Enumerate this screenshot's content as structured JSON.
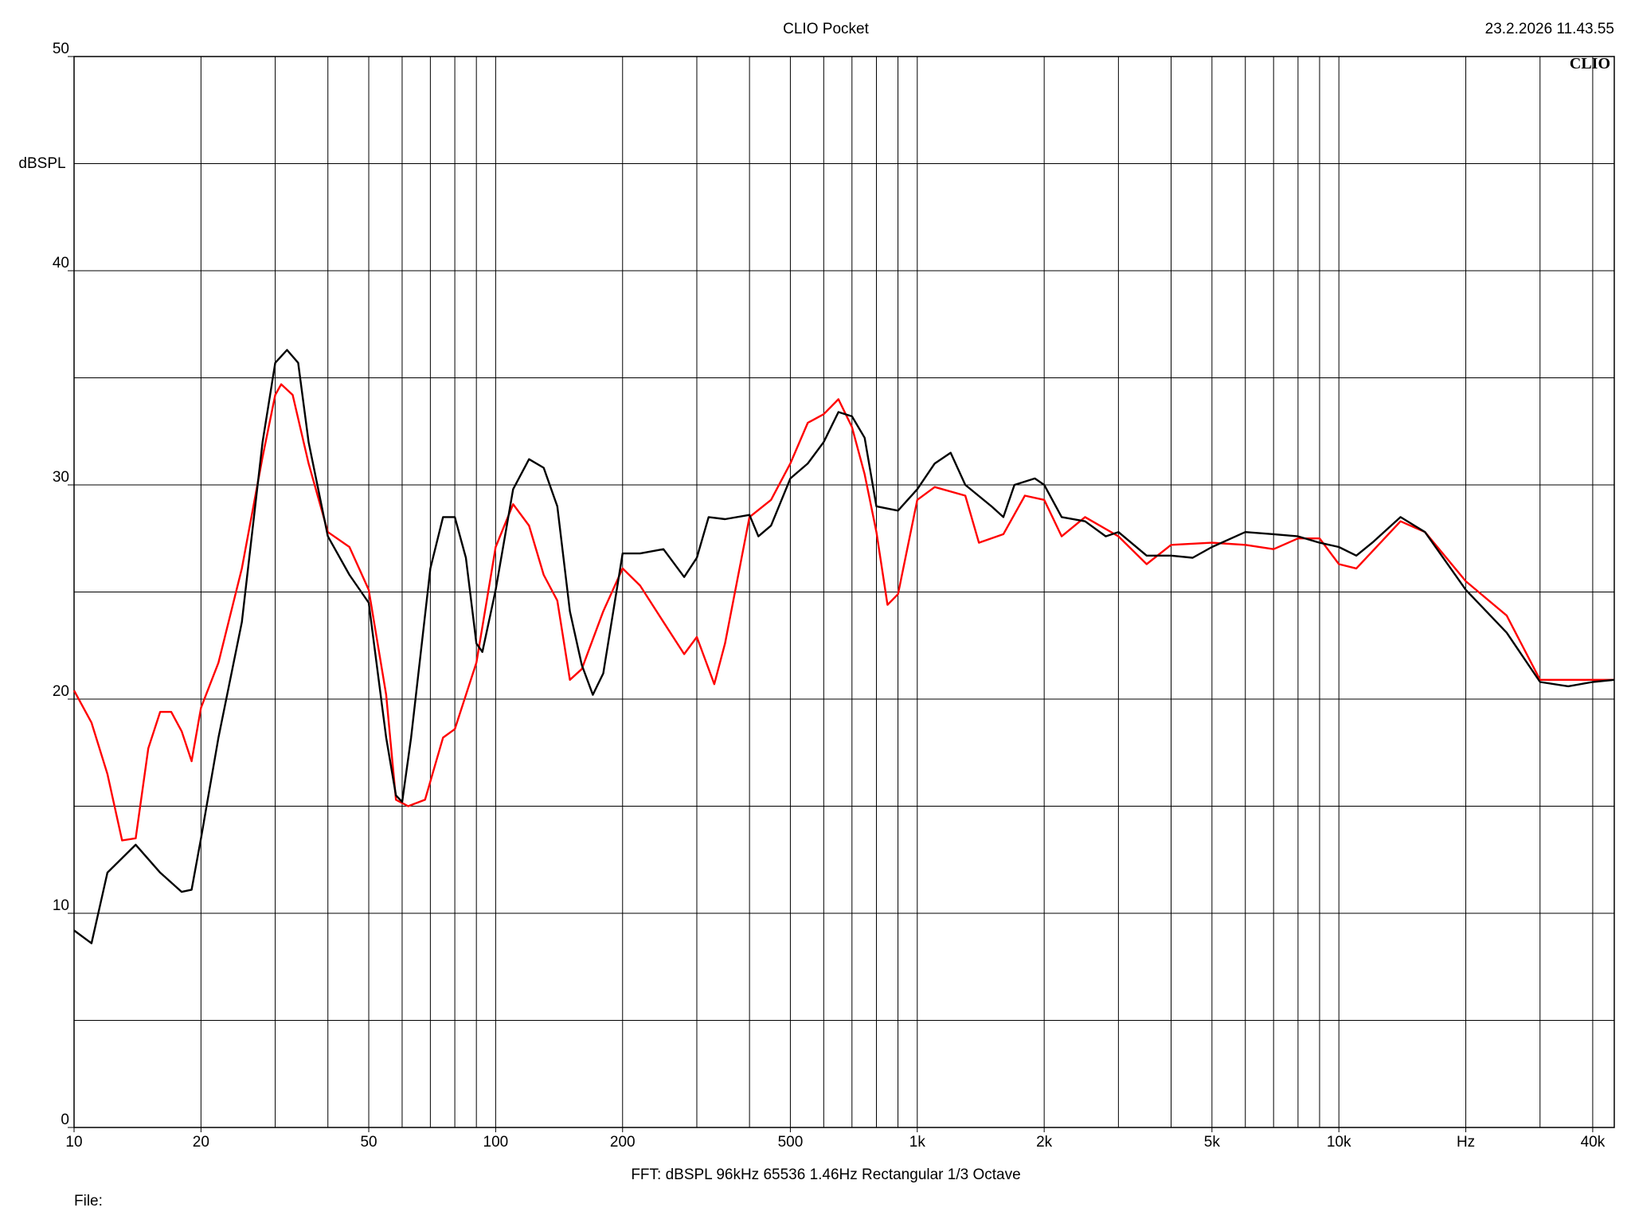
{
  "chart_data": {
    "type": "line",
    "title": "CLIO Pocket",
    "timestamp": "23.2.2026 11.43.55",
    "logo": "CLIO",
    "y_label": "dBSPL",
    "footer": "FFT:  dBSPL  96kHz  65536  1.46Hz  Rectangular  1/3 Octave",
    "file_label": "File:",
    "x_scale": "log",
    "xlim": [
      10,
      45000
    ],
    "ylim": [
      0,
      50
    ],
    "xticks": [
      10,
      20,
      50,
      100,
      200,
      500,
      {
        "value": 1000,
        "label": "1k"
      },
      {
        "value": 2000,
        "label": "2k"
      },
      {
        "value": 5000,
        "label": "5k"
      },
      {
        "value": 10000,
        "label": "10k"
      },
      {
        "value": 20000,
        "label": "Hz"
      },
      {
        "value": 40000,
        "label": "40k"
      }
    ],
    "yticks": [
      0,
      10,
      20,
      30,
      40,
      50
    ],
    "xgrid": [
      20,
      30,
      40,
      50,
      60,
      70,
      80,
      90,
      100,
      200,
      300,
      400,
      500,
      600,
      700,
      800,
      900,
      1000,
      2000,
      3000,
      4000,
      5000,
      6000,
      7000,
      8000,
      9000,
      10000,
      20000,
      30000,
      40000
    ],
    "ygrid": [
      5,
      10,
      15,
      20,
      25,
      30,
      35,
      40,
      45
    ],
    "grid": true,
    "series": [
      {
        "color": "#000000",
        "x": [
          10,
          11,
          12,
          14,
          16,
          18,
          19,
          20,
          22,
          25,
          28,
          30,
          32,
          34,
          36,
          40,
          45,
          50,
          55,
          58,
          60,
          63,
          70,
          75,
          80,
          85,
          90,
          93,
          100,
          110,
          120,
          130,
          140,
          150,
          160,
          170,
          180,
          200,
          220,
          250,
          280,
          300,
          320,
          350,
          400,
          420,
          450,
          500,
          550,
          600,
          650,
          700,
          750,
          800,
          900,
          1000,
          1100,
          1200,
          1300,
          1500,
          1600,
          1700,
          1900,
          2000,
          2200,
          2500,
          2800,
          3000,
          3500,
          4000,
          4500,
          5000,
          6000,
          7000,
          8000,
          9000,
          10000,
          11000,
          12000,
          14000,
          16000,
          20000,
          25000,
          30000,
          35000,
          40000,
          45000
        ],
        "values": [
          9.2,
          8.6,
          11.9,
          13.2,
          11.9,
          11.0,
          11.1,
          13.5,
          18.2,
          23.6,
          32,
          35.7,
          36.3,
          35.7,
          32,
          27.6,
          25.8,
          24.5,
          18.2,
          15.5,
          15.2,
          18.2,
          26.1,
          28.5,
          28.5,
          26.6,
          22.6,
          22.2,
          25.1,
          29.8,
          31.2,
          30.8,
          29,
          24.1,
          21.6,
          20.2,
          21.2,
          26.8,
          26.8,
          27,
          25.7,
          26.6,
          28.5,
          28.4,
          28.6,
          27.6,
          28.1,
          30.3,
          31,
          32,
          33.4,
          33.2,
          32.2,
          29,
          28.8,
          29.8,
          31,
          31.5,
          30,
          29,
          28.5,
          30,
          30.3,
          30,
          28.5,
          28.3,
          27.6,
          27.8,
          26.7,
          26.7,
          26.6,
          27.1,
          27.8,
          27.7,
          27.6,
          27.3,
          27.1,
          26.7,
          27.3,
          28.5,
          27.8,
          25.1,
          23.1,
          20.8,
          20.6,
          20.8,
          20.9
        ]
      },
      {
        "color": "#ff0000",
        "x": [
          10,
          11,
          12,
          13,
          14,
          15,
          16,
          17,
          18,
          19,
          20,
          22,
          25,
          28,
          30,
          31,
          33,
          36,
          40,
          45,
          50,
          55,
          58,
          62,
          68,
          75,
          80,
          90,
          100,
          110,
          120,
          130,
          140,
          150,
          160,
          180,
          200,
          220,
          250,
          280,
          300,
          330,
          350,
          400,
          450,
          500,
          550,
          600,
          650,
          700,
          750,
          800,
          850,
          900,
          1000,
          1100,
          1300,
          1400,
          1600,
          1800,
          2000,
          2200,
          2500,
          3000,
          3500,
          4000,
          5000,
          6000,
          7000,
          8000,
          9000,
          10000,
          11000,
          14000,
          16000,
          20000,
          25000,
          30000,
          35000,
          45000
        ],
        "values": [
          20.4,
          18.9,
          16.5,
          13.4,
          13.5,
          17.7,
          19.4,
          19.4,
          18.5,
          17.1,
          19.6,
          21.7,
          26.1,
          31.3,
          34.2,
          34.7,
          34.2,
          31,
          27.8,
          27.1,
          25.1,
          20.2,
          15.3,
          15,
          15.3,
          18.2,
          18.6,
          21.7,
          27.1,
          29.1,
          28.1,
          25.8,
          24.6,
          20.9,
          21.4,
          24.1,
          26.1,
          25.3,
          23.6,
          22.1,
          22.9,
          20.7,
          22.6,
          28.5,
          29.3,
          31,
          32.9,
          33.3,
          34,
          32.7,
          30.5,
          27.8,
          24.4,
          24.9,
          29.3,
          29.9,
          29.5,
          27.3,
          27.7,
          29.5,
          29.3,
          27.6,
          28.5,
          27.6,
          26.3,
          27.2,
          27.3,
          27.2,
          27,
          27.5,
          27.5,
          26.3,
          26.1,
          28.3,
          27.8,
          25.5,
          23.9,
          20.9,
          20.9,
          20.9
        ]
      }
    ]
  }
}
